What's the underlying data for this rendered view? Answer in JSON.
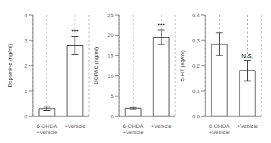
{
  "chart_data": [
    {
      "type": "bar",
      "ylabel": "Dopamine (ng/ml)",
      "categories": [
        "6-OHDA\n+Vehicle",
        "+Vehicle"
      ],
      "values": [
        0.3,
        2.8
      ],
      "errors": [
        0.07,
        0.35
      ],
      "color": "#ffffff",
      "ylim": [
        0,
        4
      ],
      "yticks": [
        0,
        1,
        2,
        3,
        4
      ],
      "grid": "x",
      "annotations": [
        {
          "text": "***",
          "category": "+Vehicle"
        }
      ]
    },
    {
      "type": "bar",
      "ylabel": "DOPAC (ng/ml)",
      "categories": [
        "6-OHDA\n+Vehicle",
        "+Vehicle"
      ],
      "values": [
        2.0,
        19.5
      ],
      "errors": [
        0.25,
        1.8
      ],
      "color": "#ffffff",
      "ylim": [
        0,
        25
      ],
      "yticks": [
        0,
        5,
        10,
        15,
        20,
        25
      ],
      "grid": "x",
      "annotations": [
        {
          "text": "***",
          "category": "+Vehicle"
        }
      ]
    },
    {
      "type": "bar",
      "ylabel": "5-HT (ng/ml)",
      "categories": [
        "6-OHDA\n+Vehicle",
        "+Vehicle"
      ],
      "values": [
        0.285,
        0.18
      ],
      "errors": [
        0.045,
        0.04
      ],
      "color": "#ffffff",
      "ylim": [
        0,
        0.4
      ],
      "yticks": [
        {
          "value": 0,
          "label": "0.0"
        },
        0.1,
        0.2,
        0.3,
        0.4
      ],
      "grid": "x",
      "annotations": [
        {
          "text": "N.S.",
          "category": "+Vehicle"
        }
      ]
    }
  ]
}
